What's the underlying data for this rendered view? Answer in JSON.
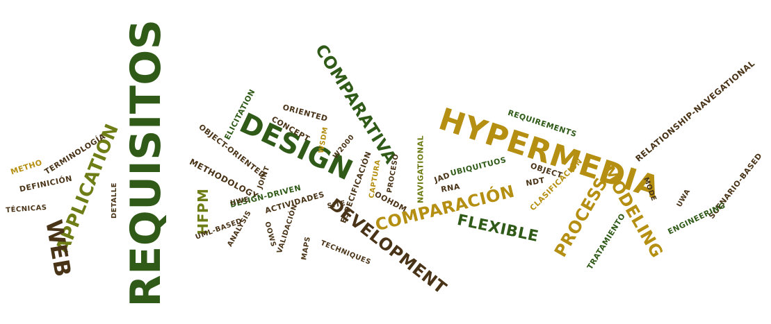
{
  "palette": {
    "dark_green": "#2f5a17",
    "olive": "#6e7d16",
    "gold": "#b58f12",
    "brown": "#4a3418",
    "bg": "#ffffff"
  },
  "words": [
    "REQUISITOS",
    "HYPERMEDIA",
    "DESIGN",
    "COMPARATIVA",
    "COMPARACIÓN",
    "DEVELOPMENT",
    "APPLICATION",
    "WEB",
    "MODELING",
    "PROCESS",
    "FLEXIBLE",
    "HFPM",
    "METHODOLOGY",
    "OBJECT-ORIENTED",
    "ELICITATION",
    "CONCEPT",
    "ORIENTED",
    "REQUIREMENTS",
    "RELATIONSHIP-NAVEGATIONAL",
    "SCENARIO-BASED",
    "ENGINEERING",
    "TRATAMIENTO",
    "CLASIFICACIÓN",
    "UBIQUITUOS",
    "OBJECT",
    "NDT",
    "NAVIGATIONAL",
    "JAD",
    "RNA",
    "OOHDM",
    "W2000",
    "WSDM",
    "PROCESO",
    "CAPTURA",
    "ESPECIFICACIÓN",
    "SITE",
    "ACTIVIDADES",
    "DESIGN-DRIVEN",
    "UWE",
    "JOINT",
    "UML-BASED",
    "ANALYSIS",
    "VALIDACIÓN",
    "OOWS",
    "MAPS",
    "TECHNIQUES",
    "DETALLE",
    "TÉCNICAS",
    "DEFINICIÓN",
    "METHO",
    "TERMINOLOGÍA",
    "UWA",
    "MODE"
  ]
}
